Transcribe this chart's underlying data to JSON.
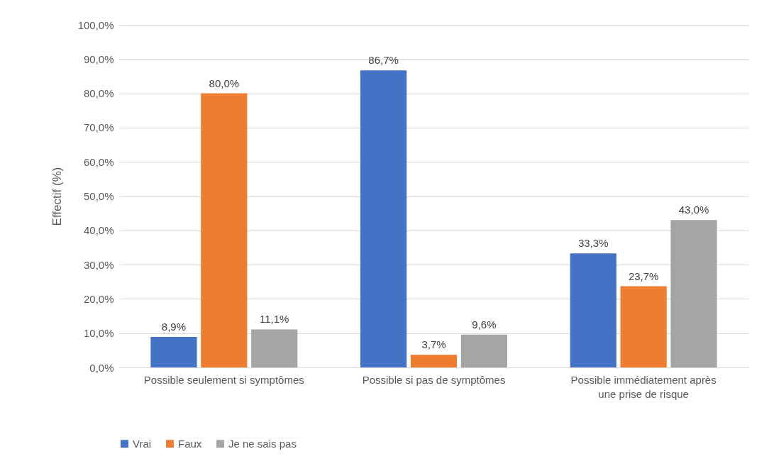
{
  "chart_data": {
    "type": "bar",
    "ylabel": "Effectif (%)",
    "categories": [
      "Possible seulement si symptômes",
      "Possible si pas de symptômes",
      "Possible immédiatement après une prise de risque"
    ],
    "series": [
      {
        "name": "Vrai",
        "color": "#4472c4",
        "values": [
          8.9,
          86.7,
          33.3
        ],
        "value_labels": [
          "8,9%",
          "86,7%",
          "33,3%"
        ]
      },
      {
        "name": "Faux",
        "color": "#ed7d31",
        "values": [
          80.0,
          3.7,
          23.7
        ],
        "value_labels": [
          "80,0%",
          "3,7%",
          "23,7%"
        ]
      },
      {
        "name": "Je ne sais pas",
        "color": "#a5a5a5",
        "values": [
          11.1,
          9.6,
          43.0
        ],
        "value_labels": [
          "11,1%",
          "9,6%",
          "43,0%"
        ]
      }
    ],
    "ylim": [
      0,
      100
    ],
    "yticks": [
      {
        "value": 0,
        "label": "0,0%"
      },
      {
        "value": 10,
        "label": "10,0%"
      },
      {
        "value": 20,
        "label": "20,0%"
      },
      {
        "value": 30,
        "label": "30,0%"
      },
      {
        "value": 40,
        "label": "40,0%"
      },
      {
        "value": 50,
        "label": "50,0%"
      },
      {
        "value": 60,
        "label": "60,0%"
      },
      {
        "value": 70,
        "label": "70,0%"
      },
      {
        "value": 80,
        "label": "80,0%"
      },
      {
        "value": 90,
        "label": "90,0%"
      },
      {
        "value": 100,
        "label": "100,0%"
      }
    ],
    "grid": "y",
    "legend": "bottom"
  }
}
